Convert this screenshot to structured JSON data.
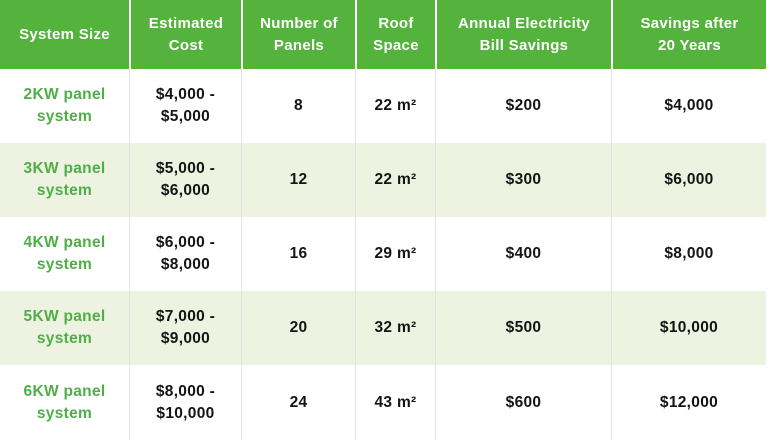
{
  "colors": {
    "header_bg": "#54b33c",
    "row_bg": "#ffffff",
    "row_alt_bg": "#edf3e0",
    "header_text": "#ffffff",
    "system_text": "#4fae47",
    "body_text": "#141414",
    "body_divider": "#e3e3e3",
    "header_divider": "#ffffff"
  },
  "chart_data": {
    "type": "table",
    "title": "",
    "columns": [
      "System Size",
      "Estimated Cost",
      "Number of Panels",
      "Roof Space",
      "Annual Electricity Bill Savings",
      "Savings after 20 Years"
    ],
    "rows": [
      [
        "2KW panel system",
        "$4,000 - $5,000",
        "8",
        "22 m²",
        "$200",
        "$4,000"
      ],
      [
        "3KW panel system",
        "$5,000 - $6,000",
        "12",
        "22 m²",
        "$300",
        "$6,000"
      ],
      [
        "4KW panel system",
        "$6,000 - $8,000",
        "16",
        "29 m²",
        "$400",
        "$8,000"
      ],
      [
        "5KW panel system",
        "$7,000 - $9,000",
        "20",
        "32 m²",
        "$500",
        "$10,000"
      ],
      [
        "6KW panel system",
        "$8,000 - $10,000",
        "24",
        "43 m²",
        "$600",
        "$12,000"
      ]
    ],
    "layout": {
      "header_style": "green-bar",
      "alternating_rows": true,
      "grid": "vertical-dividers-only"
    }
  },
  "header": [
    [
      "System Size"
    ],
    [
      "Estimated",
      "Cost"
    ],
    [
      "Number of",
      "Panels"
    ],
    [
      "Roof",
      "Space"
    ],
    [
      "Annual Electricity",
      "Bill Savings"
    ],
    [
      "Savings after",
      "20 Years"
    ]
  ],
  "rows": [
    [
      [
        "2KW panel",
        "system"
      ],
      [
        "$4,000 -",
        "$5,000"
      ],
      [
        "8"
      ],
      [
        "22 m²"
      ],
      [
        "$200"
      ],
      [
        "$4,000"
      ]
    ],
    [
      [
        "3KW panel",
        "system"
      ],
      [
        "$5,000 -",
        "$6,000"
      ],
      [
        "12"
      ],
      [
        "22 m²"
      ],
      [
        "$300"
      ],
      [
        "$6,000"
      ]
    ],
    [
      [
        "4KW panel",
        "system"
      ],
      [
        "$6,000 -",
        "$8,000"
      ],
      [
        "16"
      ],
      [
        "29 m²"
      ],
      [
        "$400"
      ],
      [
        "$8,000"
      ]
    ],
    [
      [
        "5KW panel",
        "system"
      ],
      [
        "$7,000 -",
        "$9,000"
      ],
      [
        "20"
      ],
      [
        "32 m²"
      ],
      [
        "$500"
      ],
      [
        "$10,000"
      ]
    ],
    [
      [
        "6KW panel",
        "system"
      ],
      [
        "$8,000 -",
        "$10,000"
      ],
      [
        "24"
      ],
      [
        "43 m²"
      ],
      [
        "$600"
      ],
      [
        "$12,000"
      ]
    ]
  ]
}
